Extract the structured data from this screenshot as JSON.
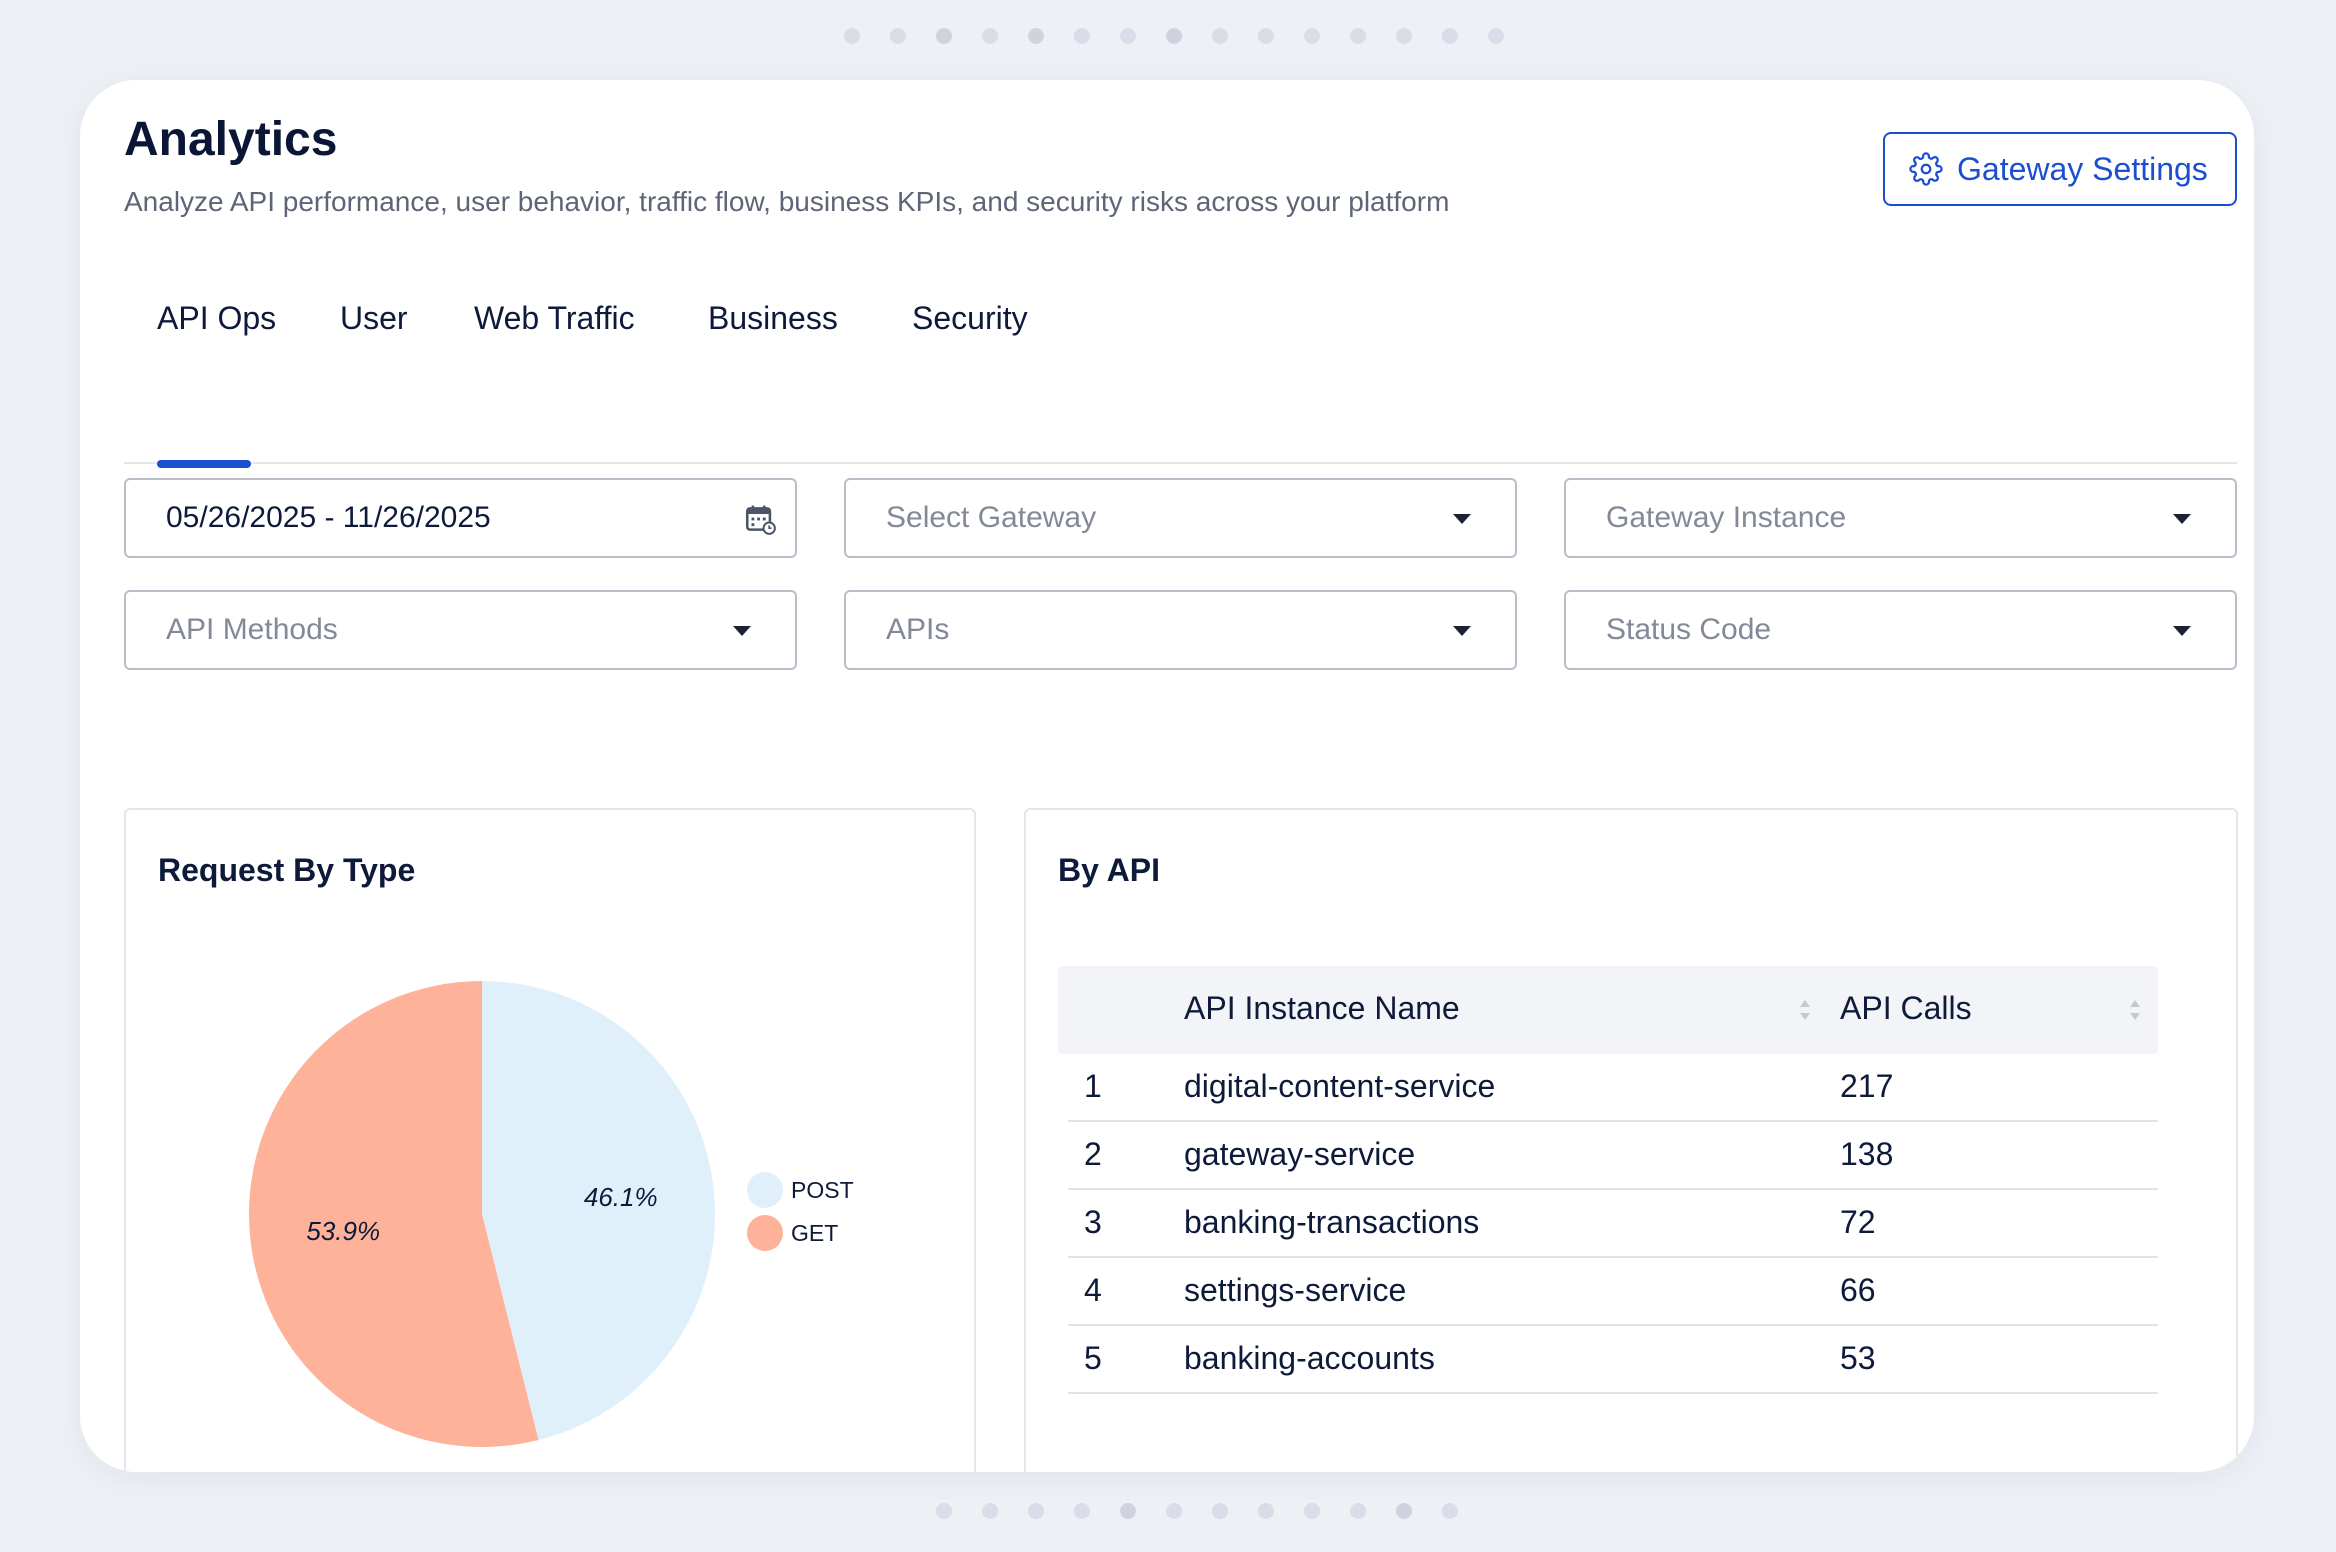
{
  "header": {
    "title": "Analytics",
    "subtitle": "Analyze API performance, user behavior, traffic flow, business KPIs, and security risks across your platform",
    "settings_button": "Gateway Settings",
    "settings_icon": "gear-icon"
  },
  "tabs": [
    {
      "label": "API Ops",
      "active": true
    },
    {
      "label": "User"
    },
    {
      "label": "Web Traffic"
    },
    {
      "label": "Business"
    },
    {
      "label": "Security"
    }
  ],
  "filters": {
    "date_range": "05/26/2025 - 11/26/2025",
    "gateway_placeholder": "Select Gateway",
    "instance_placeholder": "Gateway Instance",
    "methods_placeholder": "API Methods",
    "apis_placeholder": "APIs",
    "status_placeholder": "Status Code"
  },
  "request_panel": {
    "title": "Request By Type"
  },
  "chart_data": {
    "type": "pie",
    "title": "Request By Type",
    "slices": [
      {
        "label": "POST",
        "value": 46.1,
        "display": "46.1%",
        "color": "#dff0fb"
      },
      {
        "label": "GET",
        "value": 53.9,
        "display": "53.9%",
        "color": "#fdb299"
      }
    ],
    "legend_position": "right"
  },
  "api_panel": {
    "title": "By API",
    "columns": [
      "API Instance Name",
      "API Calls"
    ],
    "rows": [
      {
        "rank": "1",
        "name": "digital-content-service",
        "calls": "217"
      },
      {
        "rank": "2",
        "name": "gateway-service",
        "calls": "138"
      },
      {
        "rank": "3",
        "name": "banking-transactions",
        "calls": "72"
      },
      {
        "rank": "4",
        "name": "settings-service",
        "calls": "66"
      },
      {
        "rank": "5",
        "name": "banking-accounts",
        "calls": "53"
      }
    ]
  },
  "colors": {
    "accent": "#1b4fd0",
    "post": "#dff0fb",
    "get": "#fdb299"
  }
}
